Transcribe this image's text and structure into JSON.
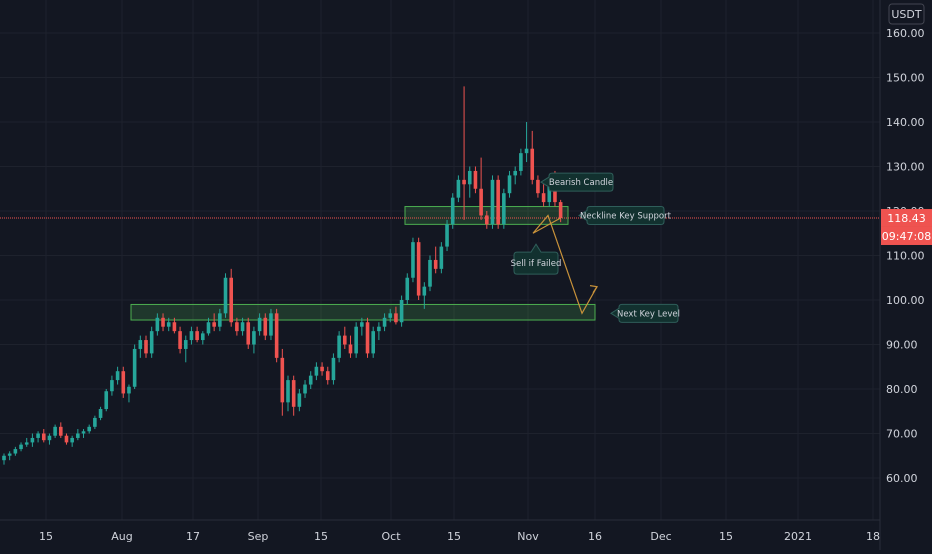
{
  "chart_data": {
    "type": "candlestick",
    "currency": "USDT",
    "ylim": [
      52,
      168
    ],
    "y_ticks": [
      "60.00",
      "70.00",
      "80.00",
      "90.00",
      "100.00",
      "110.00",
      "120.00",
      "130.00",
      "140.00",
      "150.00",
      "160.00"
    ],
    "x_ticks": [
      "15",
      "Aug",
      "17",
      "Sep",
      "15",
      "Oct",
      "15",
      "Nov",
      "16",
      "Dec",
      "15",
      "2021",
      "18"
    ],
    "last_price": "118.43",
    "last_price_value": 118.43,
    "countdown": "09:47:08",
    "colors": {
      "up": "#26a69a",
      "down": "#ef5350",
      "zone": "#4caf50",
      "path": "#c8923a",
      "background": "#131722",
      "label_bg": "#12312f"
    },
    "candles": [
      [
        64,
        65.5,
        63,
        65
      ],
      [
        65,
        66,
        64,
        65.5
      ],
      [
        65.5,
        67,
        65,
        66.5
      ],
      [
        66.5,
        68,
        66,
        67.5
      ],
      [
        67.5,
        69,
        67,
        68
      ],
      [
        68,
        70,
        67,
        69
      ],
      [
        69,
        70.5,
        68,
        70
      ],
      [
        70,
        71,
        68,
        68.5
      ],
      [
        68.5,
        70,
        67.5,
        69.5
      ],
      [
        69.5,
        72,
        69,
        71.5
      ],
      [
        71.5,
        72.5,
        69,
        69.5
      ],
      [
        69.5,
        70,
        67.5,
        68
      ],
      [
        68,
        69.5,
        67,
        69
      ],
      [
        69,
        71,
        68.5,
        70
      ],
      [
        70,
        71,
        69,
        70.5
      ],
      [
        70.5,
        72,
        70,
        71.5
      ],
      [
        71.5,
        74,
        71,
        73.5
      ],
      [
        73.5,
        76,
        73,
        75.5
      ],
      [
        75.5,
        80,
        75,
        79.5
      ],
      [
        79.5,
        83,
        78.5,
        82
      ],
      [
        82,
        85,
        81,
        84
      ],
      [
        84,
        85,
        78,
        79
      ],
      [
        79,
        81,
        77,
        80.5
      ],
      [
        80.5,
        90,
        80,
        89
      ],
      [
        89,
        92,
        87,
        91
      ],
      [
        91,
        92,
        87,
        88
      ],
      [
        88,
        94,
        87,
        93
      ],
      [
        93,
        97,
        92,
        96
      ],
      [
        96,
        97,
        93,
        94
      ],
      [
        94,
        96,
        93,
        95
      ],
      [
        95,
        96,
        92.5,
        93
      ],
      [
        93,
        94,
        88,
        89
      ],
      [
        89,
        92,
        86,
        91
      ],
      [
        91,
        94,
        90,
        93
      ],
      [
        93,
        94,
        90.5,
        91
      ],
      [
        91,
        93,
        90,
        92.5
      ],
      [
        92.5,
        96,
        92,
        95
      ],
      [
        95,
        97,
        93,
        94
      ],
      [
        94,
        98,
        93,
        97
      ],
      [
        97,
        106,
        96,
        105
      ],
      [
        105,
        107,
        94,
        95
      ],
      [
        95,
        96,
        92,
        93
      ],
      [
        93,
        96,
        92,
        95
      ],
      [
        95,
        96,
        89,
        90
      ],
      [
        90,
        94,
        88,
        93
      ],
      [
        93,
        97,
        92,
        96
      ],
      [
        96,
        97,
        91,
        92
      ],
      [
        92,
        98,
        91,
        97
      ],
      [
        97,
        98,
        86,
        87
      ],
      [
        87,
        89,
        74,
        77
      ],
      [
        77,
        83,
        75,
        82
      ],
      [
        82,
        83,
        74,
        76
      ],
      [
        76,
        80,
        75,
        79
      ],
      [
        79,
        82,
        78,
        81
      ],
      [
        81,
        84,
        80,
        83
      ],
      [
        83,
        86,
        82,
        85
      ],
      [
        85,
        86,
        83,
        84
      ],
      [
        84,
        85,
        81,
        82
      ],
      [
        82,
        88,
        81,
        87
      ],
      [
        87,
        93,
        86,
        92
      ],
      [
        92,
        94,
        89,
        90
      ],
      [
        90,
        92,
        87,
        88
      ],
      [
        88,
        95,
        87,
        94
      ],
      [
        94,
        96,
        92,
        95
      ],
      [
        95,
        96,
        87,
        88
      ],
      [
        88,
        94,
        87,
        93
      ],
      [
        93,
        95,
        91,
        94
      ],
      [
        94,
        97,
        93,
        96
      ],
      [
        96,
        98,
        95,
        97
      ],
      [
        97,
        98.5,
        94.5,
        95
      ],
      [
        95,
        101,
        94,
        100
      ],
      [
        100,
        106,
        99,
        105
      ],
      [
        105,
        114,
        104,
        113
      ],
      [
        113,
        114,
        100,
        101
      ],
      [
        101,
        104,
        98,
        103
      ],
      [
        103,
        110,
        102,
        109
      ],
      [
        109,
        112,
        106,
        107
      ],
      [
        107,
        113,
        106,
        112
      ],
      [
        112,
        118,
        111,
        117
      ],
      [
        117,
        124,
        116,
        123
      ],
      [
        123,
        128,
        122,
        127
      ],
      [
        127,
        148,
        118,
        126
      ],
      [
        126,
        130,
        123,
        129
      ],
      [
        129,
        130,
        124,
        125
      ],
      [
        125,
        132,
        118,
        119
      ],
      [
        119,
        120,
        116,
        117
      ],
      [
        117,
        128,
        116,
        127
      ],
      [
        127,
        128,
        116,
        117
      ],
      [
        117,
        125,
        116,
        124
      ],
      [
        124,
        129,
        123,
        128
      ],
      [
        128,
        130,
        126,
        129
      ],
      [
        129,
        134,
        128,
        133
      ],
      [
        133,
        140,
        131,
        134
      ],
      [
        134,
        138,
        126,
        127
      ],
      [
        127,
        128,
        123,
        124
      ],
      [
        124,
        126,
        121,
        122
      ],
      [
        122,
        128,
        121,
        127
      ],
      [
        127,
        129,
        121,
        122
      ],
      [
        122,
        122.5,
        117.5,
        118.43
      ]
    ],
    "zones": [
      {
        "y0": 117,
        "y1": 121
      },
      {
        "y0": 95.5,
        "y1": 99
      }
    ],
    "projection": [
      [
        118.43,
        0
      ],
      [
        115,
        1
      ],
      [
        119,
        2
      ],
      [
        97,
        3
      ],
      [
        103,
        4
      ]
    ],
    "annotations": [
      {
        "text": "Bearish Candle",
        "price": 126.5
      },
      {
        "text": "Neckline Key Support",
        "price": 119
      },
      {
        "text": "Sell if Failed",
        "price": 108.5
      },
      {
        "text": "Next Key Level",
        "price": 97
      }
    ]
  }
}
